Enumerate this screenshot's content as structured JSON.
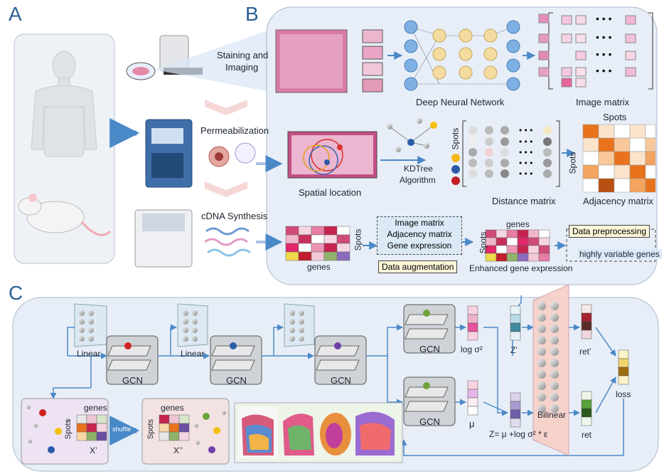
{
  "panels": {
    "a": "A",
    "b": "B",
    "c": "C"
  },
  "panel_a": {
    "staining": [
      "Staining and",
      "Imaging"
    ],
    "permeabilization": "Permeabilization",
    "cdna": "cDNA Synthesis"
  },
  "panel_b": {
    "dnn": "Deep Neural Network",
    "image_matrix": "Image matrix",
    "spatial_location": "Spatial location",
    "spots_small": "Spots",
    "kdtree": [
      "KDTree",
      "Algorithm"
    ],
    "distance_matrix": "Distance matrix",
    "spots_top": "Spots",
    "spots_side": "Spots",
    "adjacency_matrix": "Adjacency matrix",
    "genes": "genes",
    "spots_gene": "Spots",
    "aug_box": [
      "Image matrix",
      "Adjacency matrix",
      "Gene expression"
    ],
    "data_augmentation": "Data augmentation",
    "genes_enh": "genes",
    "spots_enh": "Spots",
    "enhanced": "Enhanced gene expression",
    "preprocessing": "Data preprocessing",
    "hvg": "highly variable genes"
  },
  "panel_c": {
    "linear": [
      "Linear",
      "Linear"
    ],
    "gcn": [
      "GCN",
      "GCN",
      "GCN",
      "GCN",
      "GCN"
    ],
    "log_sigma": "log σ²",
    "mu": "μ",
    "z_prime": "Z’",
    "z_eq": "Z= μ +log σ² * ε",
    "bilinear": "Bilinear",
    "ret_prime": "ret’",
    "ret": "ret",
    "loss": "loss",
    "genes1": "genes",
    "spots1": "Spots",
    "x_prime": "X’",
    "shuffle": "shuffle",
    "genes2": "genes",
    "spots2": "Spots",
    "x_dprime": "X’’"
  },
  "colors": {
    "panel_bg": "#e7eef7",
    "border": "#9aa9bd",
    "arrow": "#4a89c8",
    "accent_orange": "#e2731f"
  }
}
